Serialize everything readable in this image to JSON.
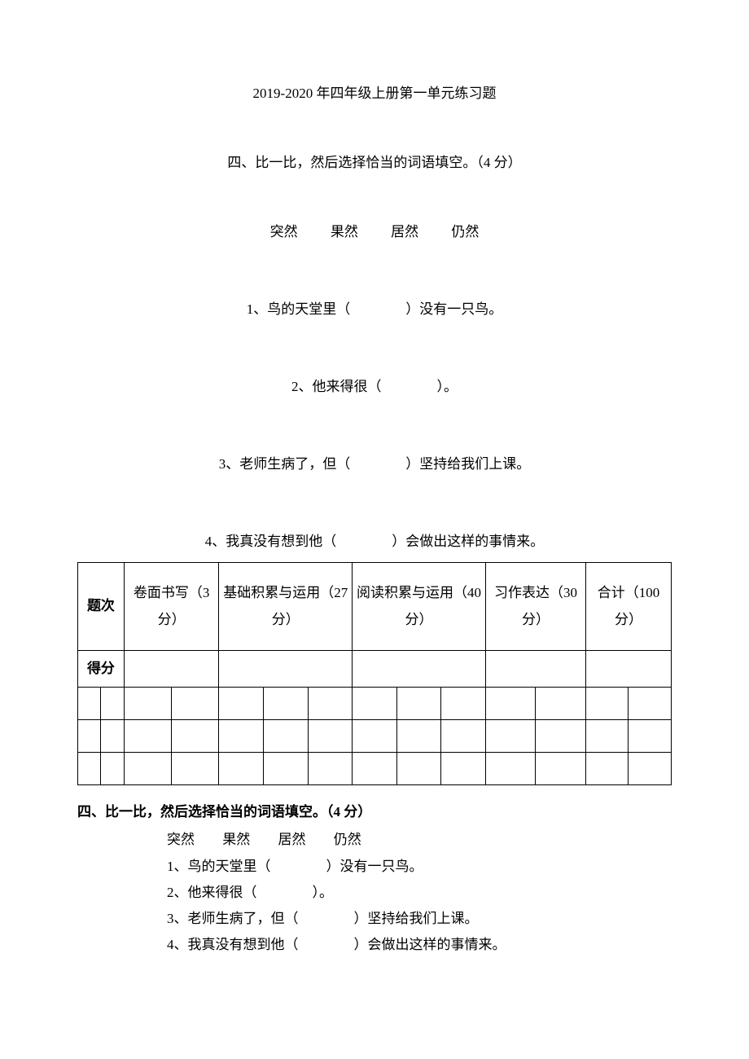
{
  "title": "2019-2020 年四年级上册第一单元练习题",
  "section4": {
    "header": "四、比一比，然后选择恰当的词语填空。（4 分）",
    "options": [
      "突然",
      "果然",
      "居然",
      "仍然"
    ],
    "questions": {
      "q1": "1、鸟的天堂里（　　　　）没有一只鸟。",
      "q2": "2、他来得很（　　　　）。",
      "q3": "3、老师生病了，但（　　　　）坚持给我们上课。",
      "q4": "4、我真没有想到他（　　　　）会做出这样的事情来。"
    }
  },
  "table": {
    "columns": {
      "header_label": "题次",
      "col1": "卷面书写（3\n分）",
      "col2": "基础积累与运用（27 分）",
      "col3": "阅读积累与运用（40 分）",
      "col4": "习作表达（30\n分）",
      "col5": "合计（100 分）"
    },
    "score_label": "得分",
    "layout": {
      "col_label_width": 66,
      "header_row_height": 108,
      "score_row_height": 36,
      "empty_row_height": 40,
      "total_columns_bottom": 14,
      "border_color": "#000000",
      "font_size": 17
    }
  },
  "section4_repeat": {
    "header": "四、比一比，然后选择恰当的词语填空。（4 分）",
    "options": [
      "突然",
      "果然",
      "居然",
      "仍然"
    ],
    "questions": {
      "q1": "1、鸟的天堂里（　　　　）没有一只鸟。",
      "q2": "2、他来得很（　　　　）。",
      "q3": "3、老师生病了，但（　　　　）坚持给我们上课。",
      "q4": "4、我真没有想到他（　　　　）会做出这样的事情来。"
    }
  },
  "style": {
    "background_color": "#ffffff",
    "text_color": "#000000",
    "font_family": "SimSun",
    "base_font_size": 17
  }
}
